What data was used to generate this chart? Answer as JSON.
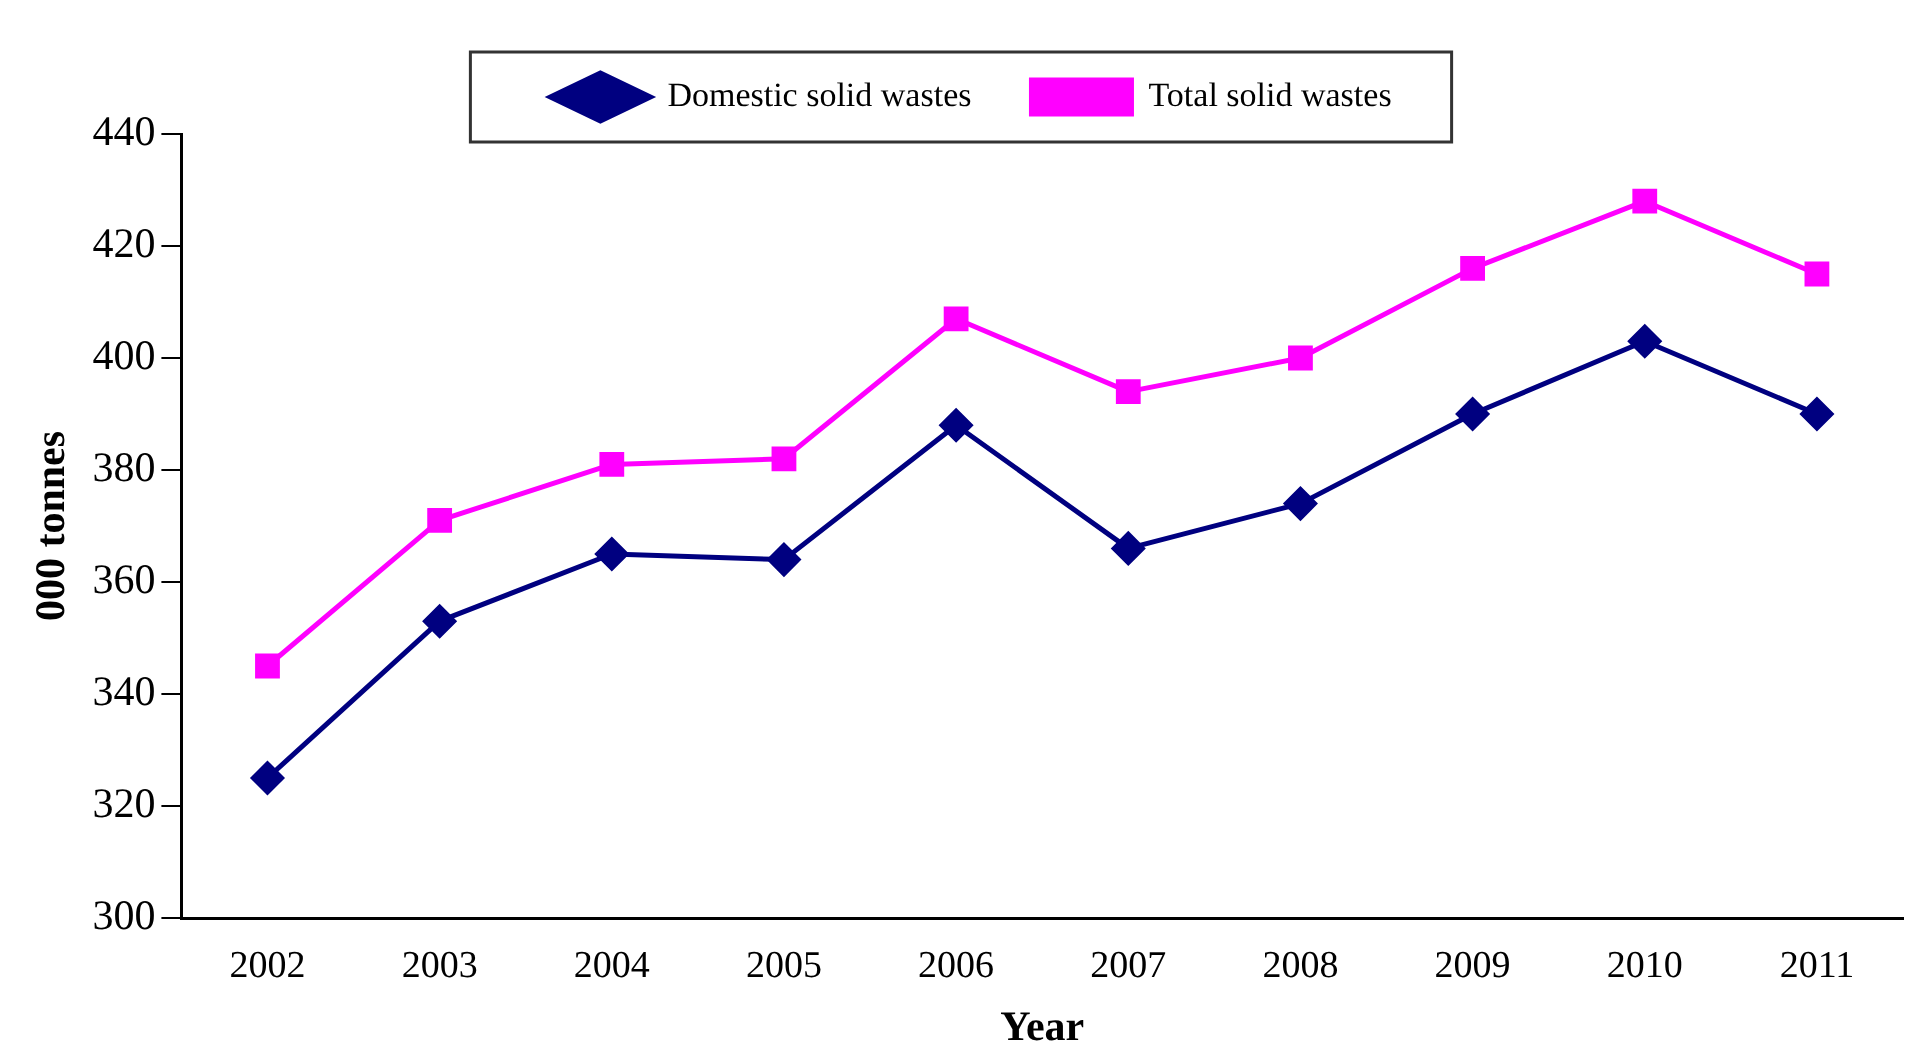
{
  "chart_data": {
    "type": "line",
    "xlabel": "Year",
    "ylabel": "000 tonnes",
    "categories": [
      "2002",
      "2003",
      "2004",
      "2005",
      "2006",
      "2007",
      "2008",
      "2009",
      "2010",
      "2011"
    ],
    "series": [
      {
        "name": "Domestic solid wastes",
        "color": "#000080",
        "marker": "diamond",
        "values": [
          325,
          353,
          365,
          364,
          388,
          366,
          374,
          390,
          403,
          390
        ]
      },
      {
        "name": "Total solid wastes",
        "color": "#ff00ff",
        "marker": "square",
        "values": [
          345,
          371,
          381,
          382,
          407,
          394,
          400,
          416,
          428,
          415
        ]
      }
    ],
    "ylim": [
      300,
      440
    ],
    "yticks": [
      300,
      320,
      340,
      360,
      380,
      400,
      420,
      440
    ],
    "grid": false,
    "legend": "top",
    "line_style": "solid"
  }
}
